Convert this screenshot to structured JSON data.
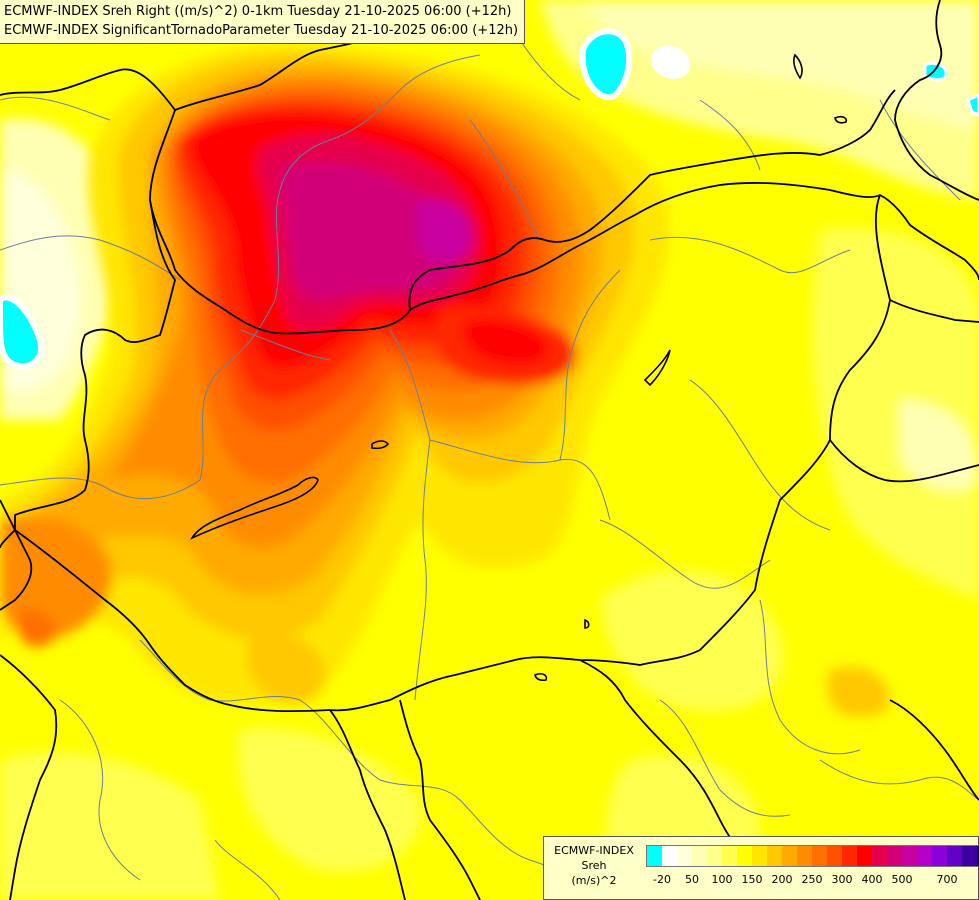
{
  "titles": {
    "line1": "ECMWF-INDEX Sreh Right ((m/s)^2) 0-1km Tuesday 21-10-2025 06:00 (+12h)",
    "line2": "ECMWF-INDEX SignificantTornadoParameter Tuesday 21-10-2025 06:00 (+12h)"
  },
  "legend": {
    "model": "ECMWF-INDEX",
    "parameter": "Sreh",
    "unit": "(m/s)^2",
    "colors": [
      "#00ffff",
      "#ffffff",
      "#ffffdc",
      "#ffffb4",
      "#ffff8c",
      "#ffff50",
      "#ffff00",
      "#ffe600",
      "#ffc800",
      "#ffaa00",
      "#ff8c00",
      "#ff6e00",
      "#ff5000",
      "#ff2800",
      "#ff0000",
      "#e6004b",
      "#d20078",
      "#c800a0",
      "#b400c8",
      "#8c00dc",
      "#6400c8",
      "#3c00a0",
      "#000080"
    ],
    "ticks": [
      "-20",
      "50",
      "100",
      "150",
      "200",
      "250",
      "300",
      "400",
      "500",
      "700"
    ]
  },
  "colors": {
    "background": "#ffff00",
    "border_country": "#000000",
    "border_region": "#6e7d96",
    "panel": "#ffffc8"
  }
}
